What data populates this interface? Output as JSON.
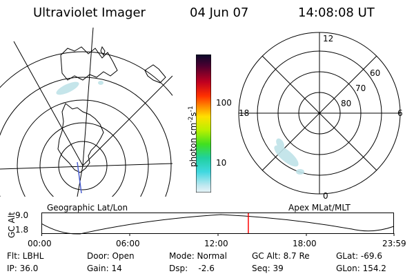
{
  "header": {
    "title": "Ultraviolet Imager",
    "date": "04 Jun 07",
    "time": "14:08:08 UT"
  },
  "colorbar": {
    "unit_prefix": "photon cm",
    "unit_exp1": "-2",
    "unit_mid": "s",
    "unit_exp2": "-1",
    "ticks": [
      "100",
      "10"
    ]
  },
  "polar_map": {
    "mlt_labels": [
      "12",
      "18",
      "6",
      "0"
    ],
    "mlat_labels": [
      "60",
      "70",
      "80"
    ]
  },
  "panel_labels": {
    "left": "Geographic Lat/Lon",
    "right": "Apex MLat/MLT"
  },
  "orbit_plot": {
    "ylabel": "GC Alt",
    "yticks": [
      "9.0",
      "1.8"
    ],
    "xticks": [
      "00:00",
      "06:00",
      "12:00",
      "18:00",
      "23:59"
    ],
    "current_time_fraction": 0.587
  },
  "status": {
    "flt": "Flt: LBHL",
    "ip": "IP: 36.0",
    "door": "Door: Open",
    "gain": "Gain: 14",
    "mode": "Mode: Normal",
    "dsp": "Dsp:    -2.6",
    "gcalt": "GC Alt: 8.7 Re",
    "seq": "Seq: 39",
    "glat": "GLat: -69.6",
    "glon": "GLon: 154.2"
  },
  "colors": {
    "marker": "#ff0000",
    "aurora": "#bfe3e8"
  }
}
